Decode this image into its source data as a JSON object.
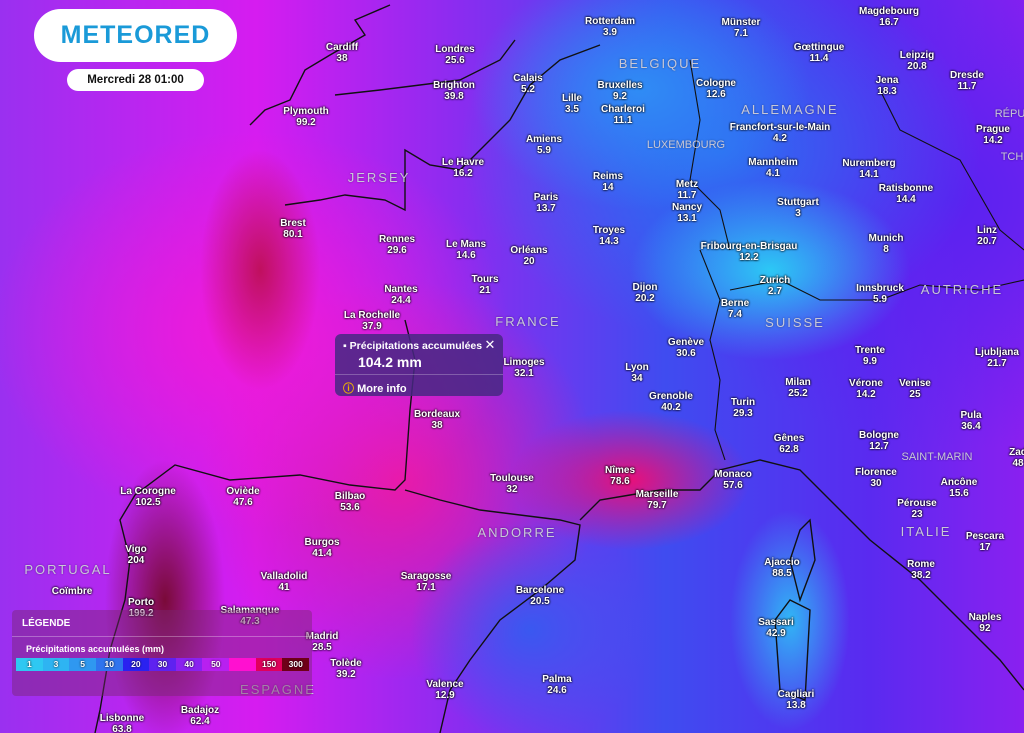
{
  "brand": {
    "logo": "METEORED",
    "date": "Mercredi 28 01:00"
  },
  "popup": {
    "title": "Précipitations accumulées",
    "value": "104.2 mm",
    "more_info": "More info",
    "close": "✕"
  },
  "legend": {
    "header": "LÉGENDE",
    "subtitle": "Précipitations accumulées (mm)",
    "stops": [
      {
        "label": "1",
        "color": "#2ec8f2"
      },
      {
        "label": "3",
        "color": "#2eb4f2"
      },
      {
        "label": "5",
        "color": "#2f98f0"
      },
      {
        "label": "10",
        "color": "#2f74ee"
      },
      {
        "label": "20",
        "color": "#2a22f0"
      },
      {
        "label": "30",
        "color": "#5e22f0"
      },
      {
        "label": "40",
        "color": "#8a22f0"
      },
      {
        "label": "50",
        "color": "#b820f0"
      },
      {
        "label": "",
        "color": "#ff10d0"
      },
      {
        "label": "150",
        "color": "#e0005c"
      },
      {
        "label": "300",
        "color": "#6e0018"
      }
    ]
  },
  "countries": [
    "ALLEMAGNE",
    "BELGIQUE",
    "LUXEMBOURG",
    "JERSEY",
    "FRANCE",
    "SUISSE",
    "AUTRICHE",
    "ANDORRE",
    "SAINT-MARIN",
    "ITALIE",
    "PORTUGAL",
    "ESPAGNE",
    "RÉPU",
    "TCH"
  ],
  "cities": [
    {
      "name": "Rotterdam",
      "value": "3.9"
    },
    {
      "name": "Münster",
      "value": "7.1"
    },
    {
      "name": "Magdebourg",
      "value": "16.7"
    },
    {
      "name": "Cardiff",
      "value": "38"
    },
    {
      "name": "Londres",
      "value": "25.6"
    },
    {
      "name": "Gœttingue",
      "value": "11.4"
    },
    {
      "name": "Leipzig",
      "value": "20.8"
    },
    {
      "name": "Calais",
      "value": "5.2"
    },
    {
      "name": "Bruxelles",
      "value": "9.2"
    },
    {
      "name": "Lille",
      "value": "3.5"
    },
    {
      "name": "Charleroi",
      "value": "11.1"
    },
    {
      "name": "Cologne",
      "value": "12.6"
    },
    {
      "name": "Jena",
      "value": "18.3"
    },
    {
      "name": "Dresde",
      "value": "11.7"
    },
    {
      "name": "Brighton",
      "value": "39.8"
    },
    {
      "name": "Plymouth",
      "value": "99.2"
    },
    {
      "name": "Francfort-sur-le-Main",
      "value": "4.2"
    },
    {
      "name": "Prague",
      "value": "14.2"
    },
    {
      "name": "Amiens",
      "value": "5.9"
    },
    {
      "name": "Mannheim",
      "value": "4.1"
    },
    {
      "name": "Nuremberg",
      "value": "14.1"
    },
    {
      "name": "Le Havre",
      "value": "16.2"
    },
    {
      "name": "Reims",
      "value": "14"
    },
    {
      "name": "Metz",
      "value": "11.7"
    },
    {
      "name": "Ratisbonne",
      "value": "14.4"
    },
    {
      "name": "Paris",
      "value": "13.7"
    },
    {
      "name": "Nancy",
      "value": "13.1"
    },
    {
      "name": "Stuttgart",
      "value": "3"
    },
    {
      "name": "Brest",
      "value": "80.1"
    },
    {
      "name": "Troyes",
      "value": "14.3"
    },
    {
      "name": "Linz",
      "value": "20.7"
    },
    {
      "name": "Munich",
      "value": "8"
    },
    {
      "name": "Rennes",
      "value": "29.6"
    },
    {
      "name": "Le Mans",
      "value": "14.6"
    },
    {
      "name": "Fribourg-en-Brisgau",
      "value": "12.2"
    },
    {
      "name": "Orléans",
      "value": "20"
    },
    {
      "name": "Zurich",
      "value": "2.7"
    },
    {
      "name": "Dijon",
      "value": "20.2"
    },
    {
      "name": "Tours",
      "value": "21"
    },
    {
      "name": "Nantes",
      "value": "24.4"
    },
    {
      "name": "Innsbruck",
      "value": "5.9"
    },
    {
      "name": "Berne",
      "value": "7.4"
    },
    {
      "name": "Genève",
      "value": "30.6"
    },
    {
      "name": "Trente",
      "value": "9.9"
    },
    {
      "name": "Ljubljana",
      "value": "21.7"
    },
    {
      "name": "Limoges",
      "value": "32.1"
    },
    {
      "name": "La Rochelle",
      "value": "37.9"
    },
    {
      "name": "Lyon",
      "value": "34"
    },
    {
      "name": "Milan",
      "value": "25.2"
    },
    {
      "name": "Vérone",
      "value": "14.2"
    },
    {
      "name": "Venise",
      "value": "25"
    },
    {
      "name": "Grenoble",
      "value": "40.2"
    },
    {
      "name": "Turin",
      "value": "29.3"
    },
    {
      "name": "Bordeaux",
      "value": "38"
    },
    {
      "name": "Pula",
      "value": "36.4"
    },
    {
      "name": "Gênes",
      "value": "62.8"
    },
    {
      "name": "Bologne",
      "value": "12.7"
    },
    {
      "name": "Florence",
      "value": "30"
    },
    {
      "name": "Nîmes",
      "value": "78.6"
    },
    {
      "name": "Monaco",
      "value": "57.6"
    },
    {
      "name": "Toulouse",
      "value": "32"
    },
    {
      "name": "Ancône",
      "value": "15.6"
    },
    {
      "name": "La Corogne",
      "value": "102.5"
    },
    {
      "name": "Oviède",
      "value": "47.6"
    },
    {
      "name": "Marseille",
      "value": "79.7"
    },
    {
      "name": "Bilbao",
      "value": "53.6"
    },
    {
      "name": "Pérouse",
      "value": "23"
    },
    {
      "name": "Burgos",
      "value": "41.4"
    },
    {
      "name": "Pescara",
      "value": "17"
    },
    {
      "name": "Vigo",
      "value": "204"
    },
    {
      "name": "Ajaccio",
      "value": "88.5"
    },
    {
      "name": "Rome",
      "value": "38.2"
    },
    {
      "name": "Valladolid",
      "value": "41"
    },
    {
      "name": "Saragosse",
      "value": "17.1"
    },
    {
      "name": "Barcelone",
      "value": "20.5"
    },
    {
      "name": "Porto",
      "value": "199.2"
    },
    {
      "name": "Salamanque",
      "value": "47.3"
    },
    {
      "name": "Naples",
      "value": "92"
    },
    {
      "name": "Sassari",
      "value": "42.9"
    },
    {
      "name": "Madrid",
      "value": "28.5"
    },
    {
      "name": "Coïmbre",
      "value": ""
    },
    {
      "name": "Tolède",
      "value": "39.2"
    },
    {
      "name": "Valence",
      "value": "12.9"
    },
    {
      "name": "Palma",
      "value": "24.6"
    },
    {
      "name": "Cagliari",
      "value": "13.8"
    },
    {
      "name": "Badajoz",
      "value": "62.4"
    },
    {
      "name": "Lisbonne",
      "value": "63.8"
    },
    {
      "name": "Zad",
      "value": "48"
    }
  ]
}
